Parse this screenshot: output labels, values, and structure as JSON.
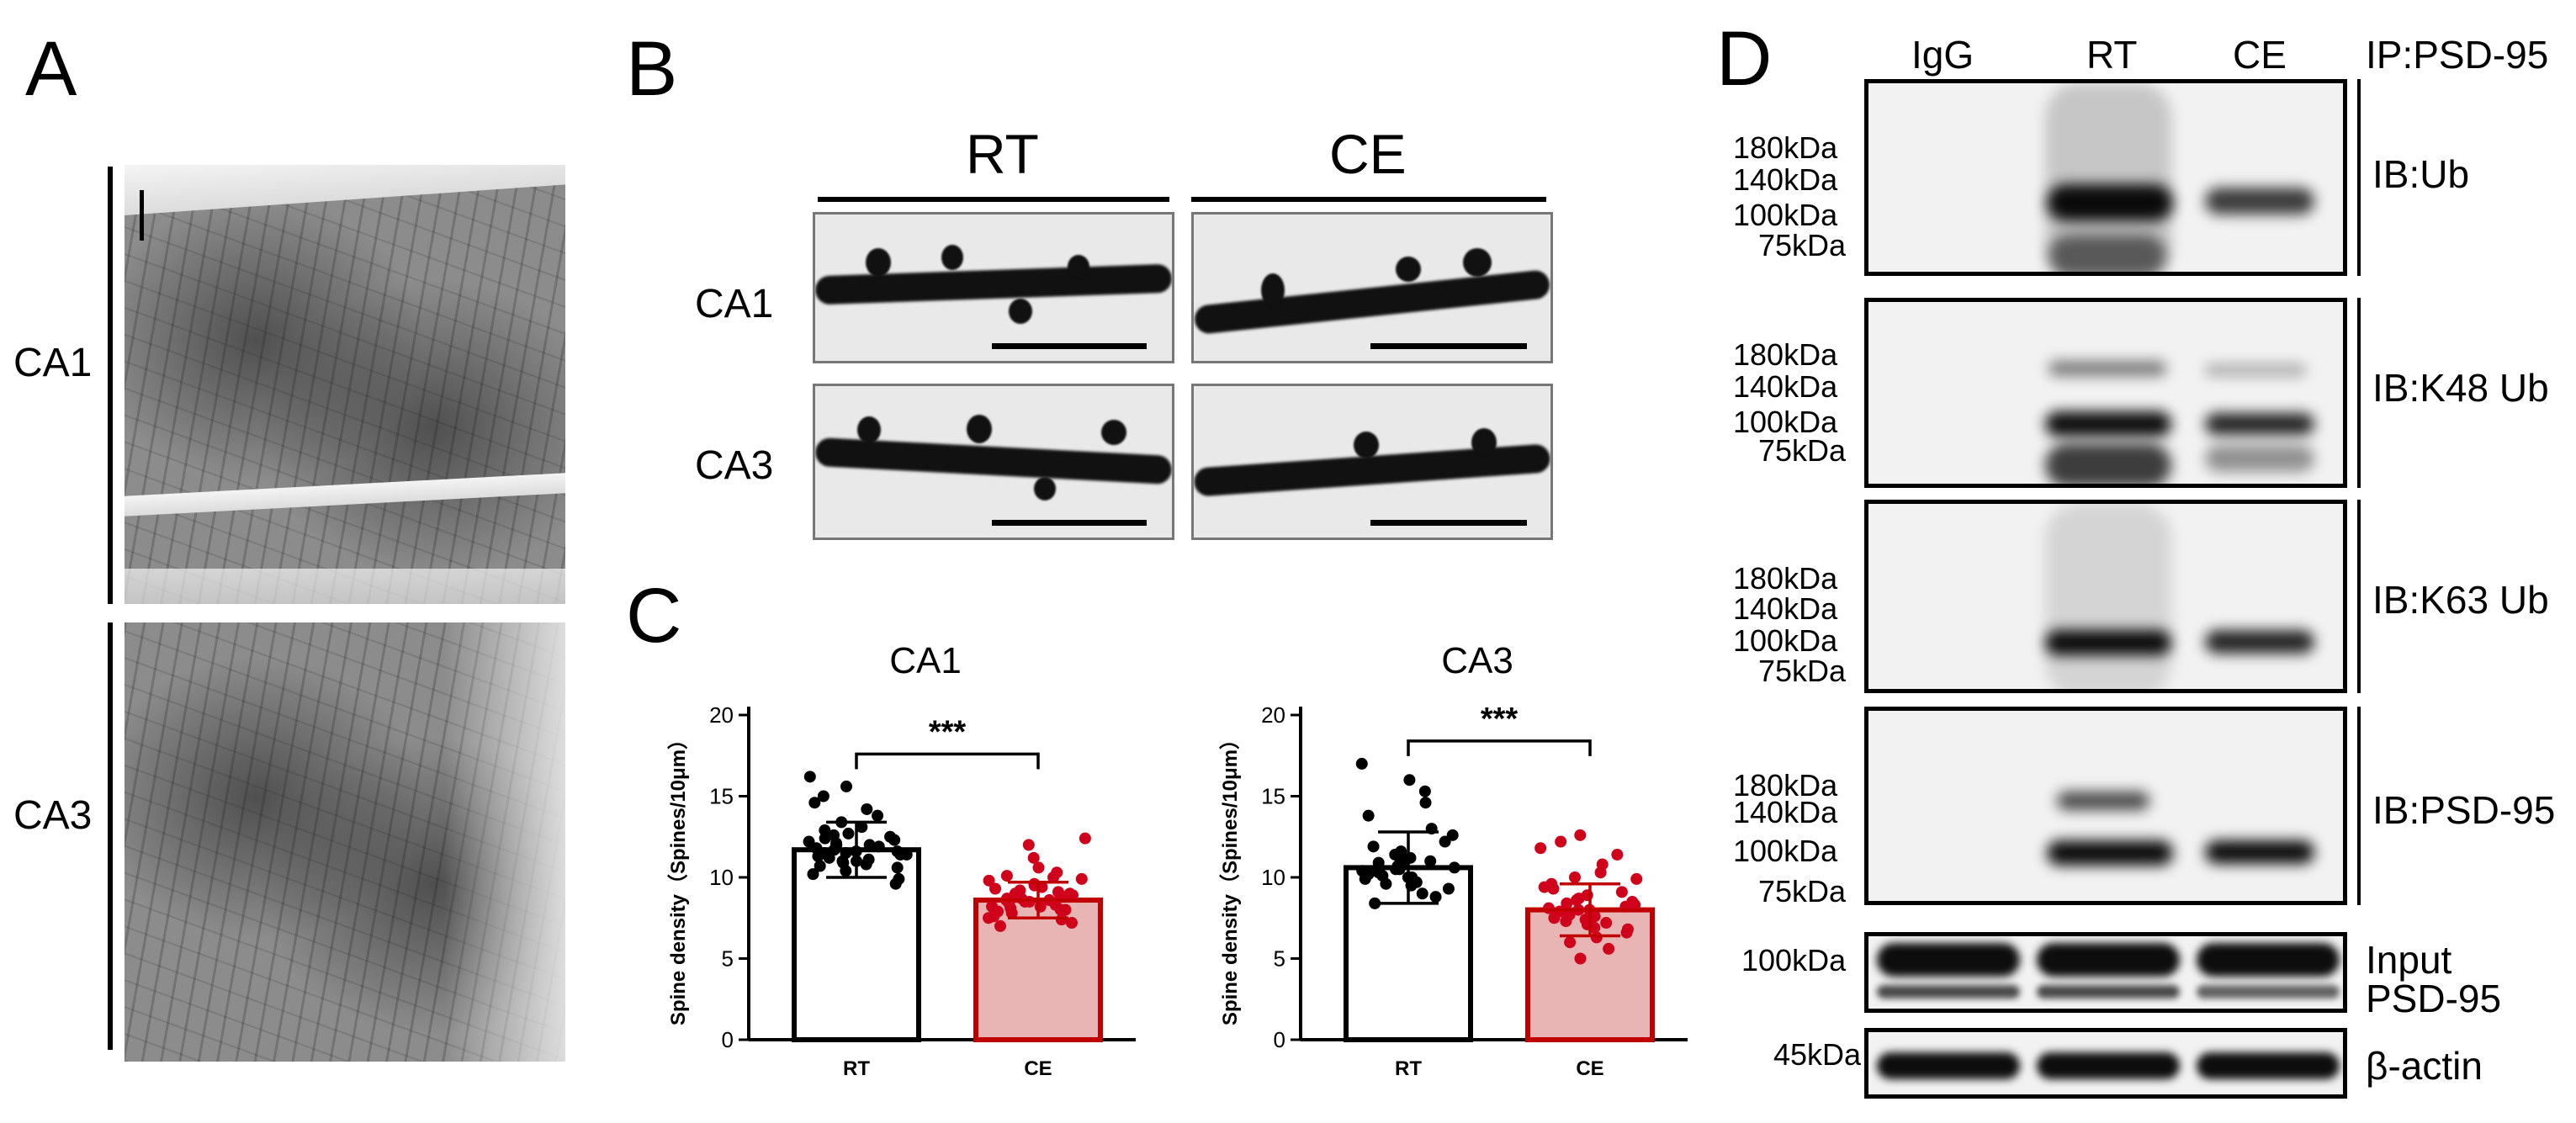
{
  "panels": {
    "A": {
      "letter": "A",
      "regions": [
        "CA1",
        "CA3"
      ]
    },
    "B": {
      "letter": "B",
      "groups": [
        "RT",
        "CE"
      ],
      "rows": [
        "CA1",
        "CA3"
      ]
    },
    "C": {
      "letter": "C",
      "ylabel": "Spine density（Spines/10μm）",
      "significance": "***"
    },
    "D": {
      "letter": "D",
      "lanes": [
        "IgG",
        "RT",
        "CE"
      ],
      "ip_label": "IP:PSD-95",
      "blots": [
        {
          "ib": "IB:Ub",
          "markers": [
            "180kDa",
            "140kDa",
            "100kDa",
            "75kDa"
          ]
        },
        {
          "ib": "IB:K48 Ub",
          "markers": [
            "180kDa",
            "140kDa",
            "100kDa",
            "75kDa"
          ]
        },
        {
          "ib": "IB:K63 Ub",
          "markers": [
            "180kDa",
            "140kDa",
            "100kDa",
            "75kDa"
          ]
        },
        {
          "ib": "IB:PSD-95",
          "markers": [
            "180kDa",
            "140kDa",
            "100kDa",
            "75kDa"
          ]
        }
      ],
      "input": {
        "marker": "100kDa",
        "label_line1": "Input",
        "label_line2": "PSD-95"
      },
      "actin": {
        "marker": "45kDa",
        "label": "β-actin"
      }
    }
  },
  "chart_data": [
    {
      "type": "bar",
      "title": "CA1",
      "categories": [
        "RT",
        "CE"
      ],
      "values": [
        11.7,
        8.6
      ],
      "error": [
        1.7,
        1.1
      ],
      "ylabel": "Spine density（Spines/10μm）",
      "ylim": [
        0,
        20
      ],
      "yticks": [
        0,
        5,
        10,
        15,
        20
      ],
      "significance": "***",
      "colors": {
        "RT_fill": "#ffffff",
        "RT_edge": "#000000",
        "CE_fill": "#e8b4b4",
        "CE_edge": "#c00000",
        "RT_points": "#000000",
        "CE_points": "#d0021b"
      },
      "points": {
        "RT": [
          9.6,
          9.9,
          10.2,
          10.4,
          10.6,
          10.7,
          10.9,
          11.0,
          11.1,
          11.2,
          11.3,
          11.4,
          11.5,
          11.5,
          11.6,
          11.7,
          11.8,
          11.9,
          12.0,
          12.1,
          12.2,
          12.3,
          12.4,
          12.5,
          12.7,
          12.9,
          13.1,
          13.4,
          13.8,
          14.2,
          14.6,
          15.0,
          15.6,
          16.2,
          11.4,
          11.0,
          12.0,
          10.8,
          11.6,
          12.6
        ],
        "CE": [
          7.0,
          7.2,
          7.4,
          7.6,
          7.8,
          7.9,
          8.0,
          8.1,
          8.2,
          8.3,
          8.4,
          8.5,
          8.6,
          8.6,
          8.7,
          8.8,
          8.9,
          9.0,
          9.1,
          9.2,
          9.3,
          9.4,
          9.6,
          9.8,
          10.0,
          10.3,
          10.6,
          11.2,
          12.0,
          12.4,
          8.5,
          8.2,
          9.0,
          8.8,
          7.5,
          9.5,
          10.1,
          8.0,
          8.7,
          9.9
        ]
      }
    },
    {
      "type": "bar",
      "title": "CA3",
      "categories": [
        "RT",
        "CE"
      ],
      "values": [
        10.6,
        8.0
      ],
      "error": [
        2.2,
        1.6
      ],
      "ylabel": "Spine density（Spines/10μm）",
      "ylim": [
        0,
        20
      ],
      "yticks": [
        0,
        5,
        10,
        15,
        20
      ],
      "significance": "***",
      "colors": {
        "RT_fill": "#ffffff",
        "RT_edge": "#000000",
        "CE_fill": "#e8b4b4",
        "CE_edge": "#c00000",
        "RT_points": "#000000",
        "CE_points": "#d0021b"
      },
      "points": {
        "RT": [
          8.4,
          8.8,
          9.0,
          9.3,
          9.5,
          9.7,
          9.9,
          10.0,
          10.1,
          10.2,
          10.3,
          10.4,
          10.5,
          10.6,
          10.7,
          10.8,
          10.9,
          11.0,
          11.2,
          11.4,
          11.6,
          11.9,
          12.2,
          12.6,
          13.0,
          13.8,
          14.6,
          15.3,
          16.0,
          17.0,
          10.5,
          10.0,
          11.1,
          9.6
        ],
        "CE": [
          5.0,
          5.6,
          6.0,
          6.3,
          6.6,
          6.9,
          7.1,
          7.3,
          7.5,
          7.6,
          7.7,
          7.8,
          7.9,
          8.0,
          8.1,
          8.2,
          8.3,
          8.4,
          8.5,
          8.7,
          8.9,
          9.1,
          9.3,
          9.6,
          9.9,
          10.3,
          10.8,
          11.4,
          12.2,
          12.6,
          7.2,
          8.6,
          6.8,
          9.4,
          8.0,
          7.4,
          10.0,
          11.8
        ]
      }
    }
  ]
}
